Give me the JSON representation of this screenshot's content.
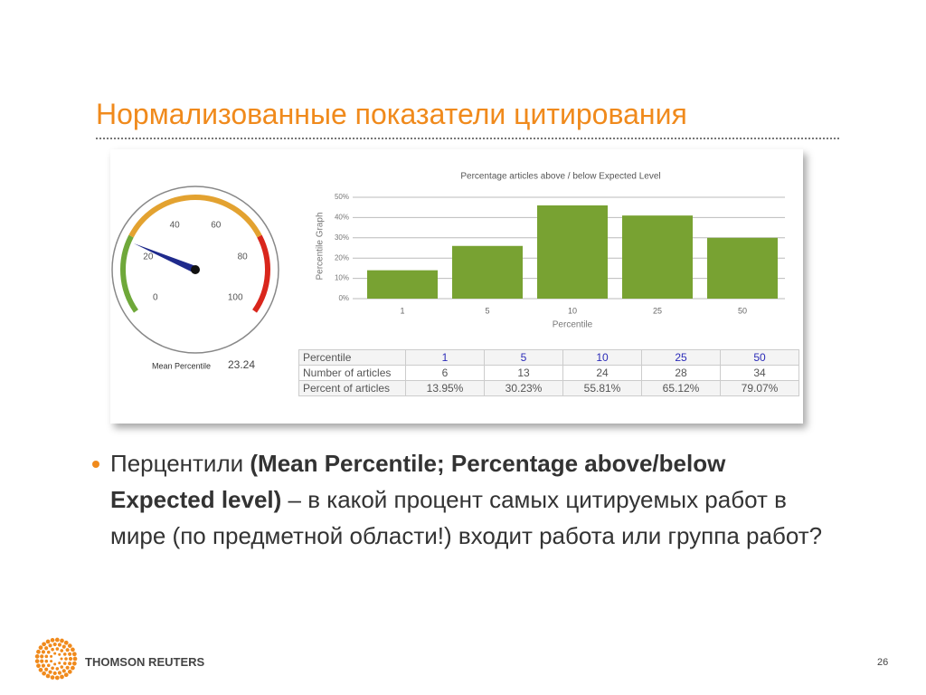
{
  "slide_title": "Нормализованные показатели цитирования",
  "chart_data": [
    {
      "type": "gauge",
      "label": "Mean Percentile",
      "value": 23.24,
      "range": [
        0,
        100
      ],
      "ticks": [
        0,
        20,
        40,
        60,
        80,
        100
      ],
      "bands": [
        {
          "from": 0,
          "to": 25,
          "color": "#6fa83a"
        },
        {
          "from": 25,
          "to": 75,
          "color": "#e3a230"
        },
        {
          "from": 75,
          "to": 100,
          "color": "#d9261c"
        }
      ],
      "needle_color": "#1f2a8c"
    },
    {
      "type": "bar",
      "title": "Percentage articles above / below Expected Level",
      "y_label": "Percentile Graph",
      "x_label": "Percentile",
      "categories": [
        "1",
        "5",
        "10",
        "25",
        "50"
      ],
      "values": [
        14,
        26,
        46,
        41,
        30
      ],
      "color": "#78a232",
      "ylim": [
        0,
        50
      ],
      "yticks": [
        {
          "value": 0,
          "label": "0%"
        },
        {
          "value": 10,
          "label": "10%"
        },
        {
          "value": 20,
          "label": "20%"
        },
        {
          "value": 30,
          "label": "30%"
        },
        {
          "value": 40,
          "label": "40%"
        },
        {
          "value": 50,
          "label": "50%"
        }
      ],
      "grid": true
    }
  ],
  "table": {
    "rows": [
      [
        "Percentile",
        "1",
        "5",
        "10",
        "25",
        "50"
      ],
      [
        "Number of articles",
        "6",
        "13",
        "24",
        "28",
        "34"
      ],
      [
        "Percent of articles",
        "13.95%",
        "30.23%",
        "55.81%",
        "65.12%",
        "79.07%"
      ]
    ]
  },
  "bullet": {
    "text_1": "Перцентили ",
    "bold": "(Mean Percentile; Percentage above/below Expected level)",
    "text_2": " – в какой процент самых цитируемых работ в мире (по предметной области!) входит работа или группа работ?"
  },
  "footer": {
    "brand": "THOMSON REUTERS",
    "page": "26"
  }
}
